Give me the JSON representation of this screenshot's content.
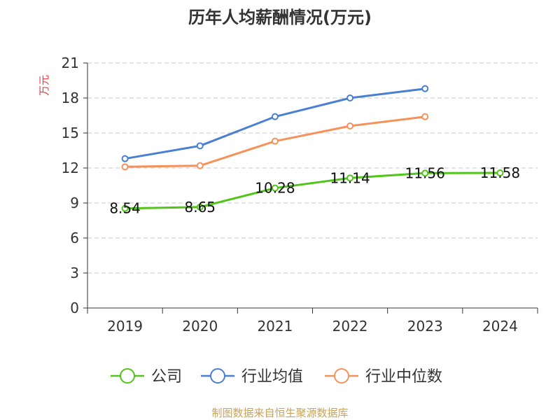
{
  "chart_data": {
    "type": "line",
    "title": "历年人均薪酬情况(万元)",
    "ylabel": "万元",
    "xlabel": "",
    "ylim": [
      0,
      21
    ],
    "yticks": [
      0,
      3,
      6,
      9,
      12,
      15,
      18,
      21
    ],
    "categories": [
      "2019",
      "2020",
      "2021",
      "2022",
      "2023",
      "2024"
    ],
    "grid": true,
    "legend_position": "bottom",
    "series": [
      {
        "name": "公司",
        "color": "#52c41a",
        "values": [
          8.54,
          8.65,
          10.28,
          11.14,
          11.56,
          11.58
        ],
        "labels": [
          "8.54",
          "8.65",
          "10.28",
          "11.14",
          "11.56",
          "11.58"
        ]
      },
      {
        "name": "行业均值",
        "color": "#4a7fd4",
        "values": [
          12.8,
          13.9,
          16.4,
          18.0,
          18.8,
          null
        ]
      },
      {
        "name": "行业中位数",
        "color": "#f5925c",
        "values": [
          12.1,
          12.2,
          14.3,
          15.6,
          16.4,
          null
        ]
      }
    ]
  },
  "source": "制图数据来自恒生聚源数据库"
}
